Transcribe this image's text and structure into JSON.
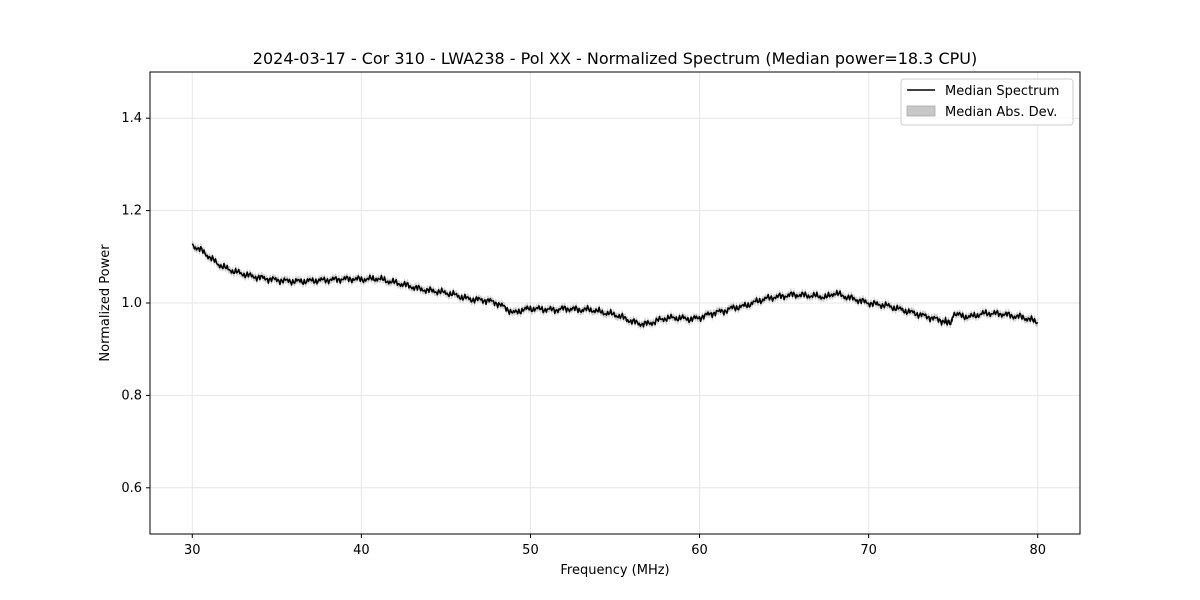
{
  "chart_data": {
    "type": "line",
    "title": "2024-03-17 - Cor 310 - LWA238 - Pol XX - Normalized Spectrum (Median power=18.3 CPU)",
    "xlabel": "Frequency (MHz)",
    "ylabel": "Normalized Power",
    "xlim": [
      27.5,
      82.5
    ],
    "ylim": [
      0.5,
      1.5
    ],
    "xticks": [
      30,
      40,
      50,
      60,
      70,
      80
    ],
    "yticks": [
      0.6,
      0.8,
      1.0,
      1.2,
      1.4
    ],
    "xtick_labels": [
      "30",
      "40",
      "50",
      "60",
      "70",
      "80"
    ],
    "ytick_labels": [
      "0.6",
      "0.8",
      "1.0",
      "1.2",
      "1.4"
    ],
    "grid": true,
    "legend_position": "top-right",
    "series": [
      {
        "name": "Median Spectrum",
        "color": "#000000",
        "style": "line",
        "x": [
          30.0,
          30.5,
          31.0,
          31.5,
          32.0,
          32.5,
          33.0,
          33.5,
          34.0,
          34.5,
          35.0,
          35.5,
          36.0,
          36.5,
          37.0,
          37.5,
          38.0,
          38.5,
          39.0,
          39.5,
          40.0,
          40.5,
          41.0,
          41.5,
          42.0,
          42.5,
          43.0,
          43.5,
          44.0,
          44.5,
          45.0,
          45.5,
          46.0,
          46.5,
          47.0,
          47.5,
          48.0,
          48.5,
          49.0,
          49.5,
          50.0,
          50.5,
          51.0,
          51.5,
          52.0,
          52.5,
          53.0,
          53.5,
          54.0,
          54.5,
          55.0,
          55.5,
          56.0,
          56.5,
          57.0,
          57.5,
          58.0,
          58.5,
          59.0,
          59.5,
          60.0,
          60.5,
          61.0,
          61.5,
          62.0,
          62.5,
          63.0,
          63.5,
          64.0,
          64.5,
          65.0,
          65.5,
          66.0,
          66.5,
          67.0,
          67.5,
          68.0,
          68.5,
          69.0,
          69.5,
          70.0,
          70.5,
          71.0,
          71.5,
          72.0,
          72.5,
          73.0,
          73.5,
          74.0,
          74.5,
          74.9,
          75.0,
          75.5,
          76.0,
          76.5,
          77.0,
          77.5,
          78.0,
          78.5,
          79.0,
          79.5,
          80.0
        ],
        "y": [
          1.125,
          1.115,
          1.1,
          1.085,
          1.075,
          1.068,
          1.063,
          1.058,
          1.055,
          1.052,
          1.05,
          1.048,
          1.047,
          1.047,
          1.048,
          1.049,
          1.05,
          1.051,
          1.052,
          1.052,
          1.051,
          1.052,
          1.053,
          1.048,
          1.044,
          1.04,
          1.035,
          1.03,
          1.027,
          1.025,
          1.022,
          1.018,
          1.012,
          1.008,
          1.007,
          1.005,
          1.0,
          0.99,
          0.978,
          0.985,
          0.988,
          0.987,
          0.986,
          0.985,
          0.988,
          0.987,
          0.985,
          0.986,
          0.982,
          0.978,
          0.975,
          0.968,
          0.96,
          0.955,
          0.955,
          0.962,
          0.967,
          0.968,
          0.967,
          0.965,
          0.968,
          0.975,
          0.98,
          0.983,
          0.99,
          0.992,
          0.998,
          1.005,
          1.01,
          1.013,
          1.015,
          1.018,
          1.017,
          1.016,
          1.015,
          1.012,
          1.022,
          1.015,
          1.01,
          1.005,
          1.0,
          0.997,
          0.995,
          0.99,
          0.985,
          0.98,
          0.975,
          0.97,
          0.965,
          0.96,
          0.957,
          0.978,
          0.972,
          0.97,
          0.975,
          0.978,
          0.977,
          0.976,
          0.972,
          0.97,
          0.965,
          0.958
        ]
      },
      {
        "name": "Median Abs. Dev.",
        "color": "#c8c8c8",
        "style": "band",
        "halfwidth": 0.008
      }
    ]
  }
}
